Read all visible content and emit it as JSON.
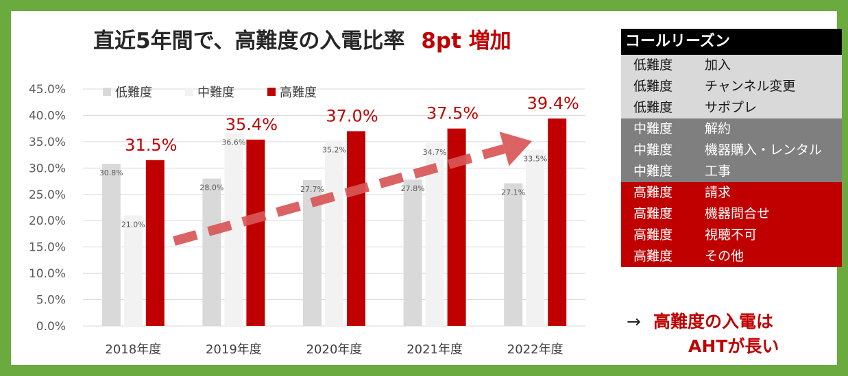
{
  "title": {
    "main": "直近5年間で、高難度の入電比率",
    "accent": "8pt 増加"
  },
  "chart_data": {
    "type": "bar",
    "categories": [
      "2018年度",
      "2019年度",
      "2020年度",
      "2021年度",
      "2022年度"
    ],
    "series": [
      {
        "name": "低難度",
        "color": "#d9d9d9",
        "values": [
          30.8,
          28.0,
          27.7,
          27.8,
          27.1
        ],
        "labels": [
          "30.8%",
          "28.0%",
          "27.7%",
          "27.8%",
          "27.1%"
        ]
      },
      {
        "name": "中難度",
        "color": "#f2f2f2",
        "values": [
          21.0,
          36.6,
          35.2,
          34.7,
          33.5
        ],
        "labels": [
          "21.0%",
          "36.6%",
          "35.2%",
          "34.7%",
          "33.5%"
        ]
      },
      {
        "name": "高難度",
        "color": "#c00000",
        "values": [
          31.5,
          35.4,
          37.0,
          37.5,
          39.4
        ],
        "labels": [
          "31.5%",
          "35.4%",
          "37.0%",
          "37.5%",
          "39.4%"
        ]
      }
    ],
    "yticks": [
      "0.0%",
      "5.0%",
      "10.0%",
      "15.0%",
      "20.0%",
      "25.0%",
      "30.0%",
      "35.0%",
      "40.0%",
      "45.0%"
    ],
    "ylim": [
      0,
      45
    ],
    "grid": true,
    "legend": "top-left",
    "trend_arrow": {
      "color": "#d95656"
    }
  },
  "reasons": {
    "header": "コールリーズン",
    "rows": [
      {
        "level": "低難度",
        "reason": "加入",
        "tier": "low"
      },
      {
        "level": "低難度",
        "reason": "チャンネル変更",
        "tier": "low"
      },
      {
        "level": "低難度",
        "reason": "サポプレ",
        "tier": "low"
      },
      {
        "level": "中難度",
        "reason": "解約",
        "tier": "mid"
      },
      {
        "level": "中難度",
        "reason": "機器購入・レンタル",
        "tier": "mid"
      },
      {
        "level": "中難度",
        "reason": "工事",
        "tier": "mid"
      },
      {
        "level": "高難度",
        "reason": "請求",
        "tier": "high"
      },
      {
        "level": "高難度",
        "reason": "機器問合せ",
        "tier": "high"
      },
      {
        "level": "高難度",
        "reason": "視聴不可",
        "tier": "high"
      },
      {
        "level": "高難度",
        "reason": "その他",
        "tier": "high"
      }
    ]
  },
  "note": {
    "arrow": "→",
    "line1": "高難度の入電は",
    "line2": "AHTが長い"
  }
}
